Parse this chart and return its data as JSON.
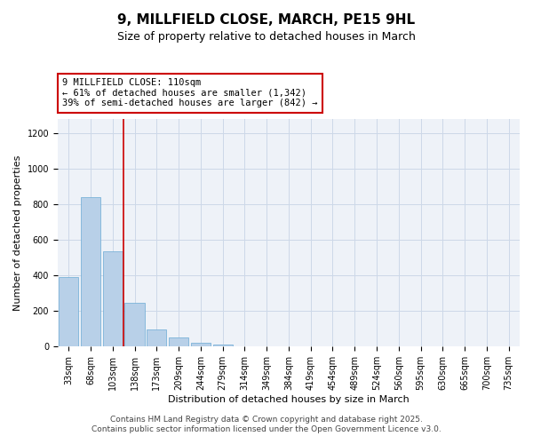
{
  "title": "9, MILLFIELD CLOSE, MARCH, PE15 9HL",
  "subtitle": "Size of property relative to detached houses in March",
  "xlabel": "Distribution of detached houses by size in March",
  "ylabel": "Number of detached properties",
  "bar_labels": [
    "33sqm",
    "68sqm",
    "103sqm",
    "138sqm",
    "173sqm",
    "209sqm",
    "244sqm",
    "279sqm",
    "314sqm",
    "349sqm",
    "384sqm",
    "419sqm",
    "454sqm",
    "489sqm",
    "524sqm",
    "560sqm",
    "595sqm",
    "630sqm",
    "665sqm",
    "700sqm",
    "735sqm"
  ],
  "bar_values": [
    390,
    840,
    535,
    248,
    98,
    52,
    20,
    10,
    4,
    2,
    1,
    0,
    0,
    0,
    0,
    0,
    0,
    0,
    0,
    0,
    0
  ],
  "bar_color": "#b8d0e8",
  "bar_edge_color": "#6aaad4",
  "vline_x_index": 2.5,
  "vline_color": "#cc0000",
  "annot_line1": "9 MILLFIELD CLOSE: 110sqm",
  "annot_line2": "← 61% of detached houses are smaller (1,342)",
  "annot_line3": "39% of semi-detached houses are larger (842) →",
  "annotation_box_color": "#cc0000",
  "ylim": [
    0,
    1280
  ],
  "yticks": [
    0,
    200,
    400,
    600,
    800,
    1000,
    1200
  ],
  "grid_color": "#ccd8e8",
  "bg_color": "#eef2f8",
  "footer_line1": "Contains HM Land Registry data © Crown copyright and database right 2025.",
  "footer_line2": "Contains public sector information licensed under the Open Government Licence v3.0.",
  "title_fontsize": 11,
  "subtitle_fontsize": 9,
  "axis_label_fontsize": 8,
  "tick_fontsize": 7,
  "annotation_fontsize": 7.5,
  "footer_fontsize": 6.5
}
